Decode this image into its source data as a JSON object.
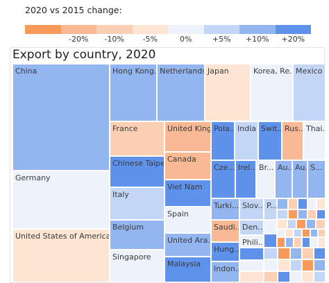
{
  "legend": {
    "title": "2020 vs 2015 change:",
    "bins": [
      {
        "color": "#f79a5a",
        "label": ""
      },
      {
        "color": "#f9b994",
        "label": "-20%"
      },
      {
        "color": "#fbd0b5",
        "label": "-10%"
      },
      {
        "color": "#fde4d3",
        "label": "-5%"
      },
      {
        "color": "#eef2fa",
        "label": "0%"
      },
      {
        "color": "#c3d6f6",
        "label": "+5%"
      },
      {
        "color": "#93b6f0",
        "label": "+10%"
      },
      {
        "color": "#5f92ea",
        "label": "+20%"
      }
    ]
  },
  "chart_data": {
    "type": "treemap",
    "title": "Export by country, 2020",
    "color_metric": "2020 vs 2015 change",
    "items": [
      {
        "name": "China",
        "label": "China",
        "change_bin": "+10%"
      },
      {
        "name": "Germany",
        "label": "Germany",
        "change_bin": "0%"
      },
      {
        "name": "United States of America",
        "label": "United States of America",
        "change_bin": "-5%"
      },
      {
        "name": "Hong Kong",
        "label": "Hong Kong...",
        "change_bin": "+10%"
      },
      {
        "name": "Netherlands",
        "label": "Netherlands",
        "change_bin": "+10%"
      },
      {
        "name": "Japan",
        "label": "Japan",
        "change_bin": "-5%"
      },
      {
        "name": "Korea, Rep.",
        "label": "Korea, Re...",
        "change_bin": "0%"
      },
      {
        "name": "Mexico",
        "label": "Mexico",
        "change_bin": "+5%"
      },
      {
        "name": "France",
        "label": "France",
        "change_bin": "-10%"
      },
      {
        "name": "United Kingdom",
        "label": "United King...",
        "change_bin": "-20%"
      },
      {
        "name": "Canada",
        "label": "Canada",
        "change_bin": "-20%"
      },
      {
        "name": "Chinese Taipei",
        "label": "Chinese Taipei",
        "change_bin": "+20%"
      },
      {
        "name": "Viet Nam",
        "label": "Viet Nam",
        "change_bin": "+20%"
      },
      {
        "name": "Italy",
        "label": "Italy",
        "change_bin": "+5%"
      },
      {
        "name": "Spain",
        "label": "Spain",
        "change_bin": "0%"
      },
      {
        "name": "Belgium",
        "label": "Belgium",
        "change_bin": "+10%"
      },
      {
        "name": "United Arab Emirates",
        "label": "United Ara...",
        "change_bin": "+10%"
      },
      {
        "name": "Singapore",
        "label": "Singapore",
        "change_bin": "0%"
      },
      {
        "name": "Malaysia",
        "label": "Malaysia",
        "change_bin": "+20%"
      },
      {
        "name": "Poland",
        "label": "Pola...",
        "change_bin": "+20%"
      },
      {
        "name": "India",
        "label": "India",
        "change_bin": "+5%"
      },
      {
        "name": "Switzerland",
        "label": "Swit...",
        "change_bin": "+20%"
      },
      {
        "name": "Russia",
        "label": "Rus...",
        "change_bin": "-20%"
      },
      {
        "name": "Thailand",
        "label": "Thai...",
        "change_bin": "0%"
      },
      {
        "name": "Czech Republic",
        "label": "Cze...",
        "change_bin": "+20%"
      },
      {
        "name": "Ireland",
        "label": "Irel...",
        "change_bin": "+20%"
      },
      {
        "name": "Brazil",
        "label": "Br...",
        "change_bin": "0%"
      },
      {
        "name": "Australia",
        "label": "Au...",
        "change_bin": "+10%"
      },
      {
        "name": "Austria",
        "label": "Au...",
        "change_bin": "+10%"
      },
      {
        "name": "Sweden",
        "label": "S...",
        "change_bin": "+10%"
      },
      {
        "name": "Turkey",
        "label": "Turki...",
        "change_bin": "+10%"
      },
      {
        "name": "Slovakia",
        "label": "Slov...",
        "change_bin": "+5%"
      },
      {
        "name": "Portugal",
        "label": "P...",
        "change_bin": "+5%"
      },
      {
        "name": "Saudi Arabia",
        "label": "Saudi...",
        "change_bin": "-20%"
      },
      {
        "name": "Denmark",
        "label": "Den...",
        "change_bin": "+5%"
      },
      {
        "name": "Philippines",
        "label": "Phili...",
        "change_bin": "0%"
      },
      {
        "name": "Hungary",
        "label": "Hung...",
        "change_bin": "+20%"
      },
      {
        "name": "Indonesia",
        "label": "Indon...",
        "change_bin": "+10%"
      }
    ]
  }
}
